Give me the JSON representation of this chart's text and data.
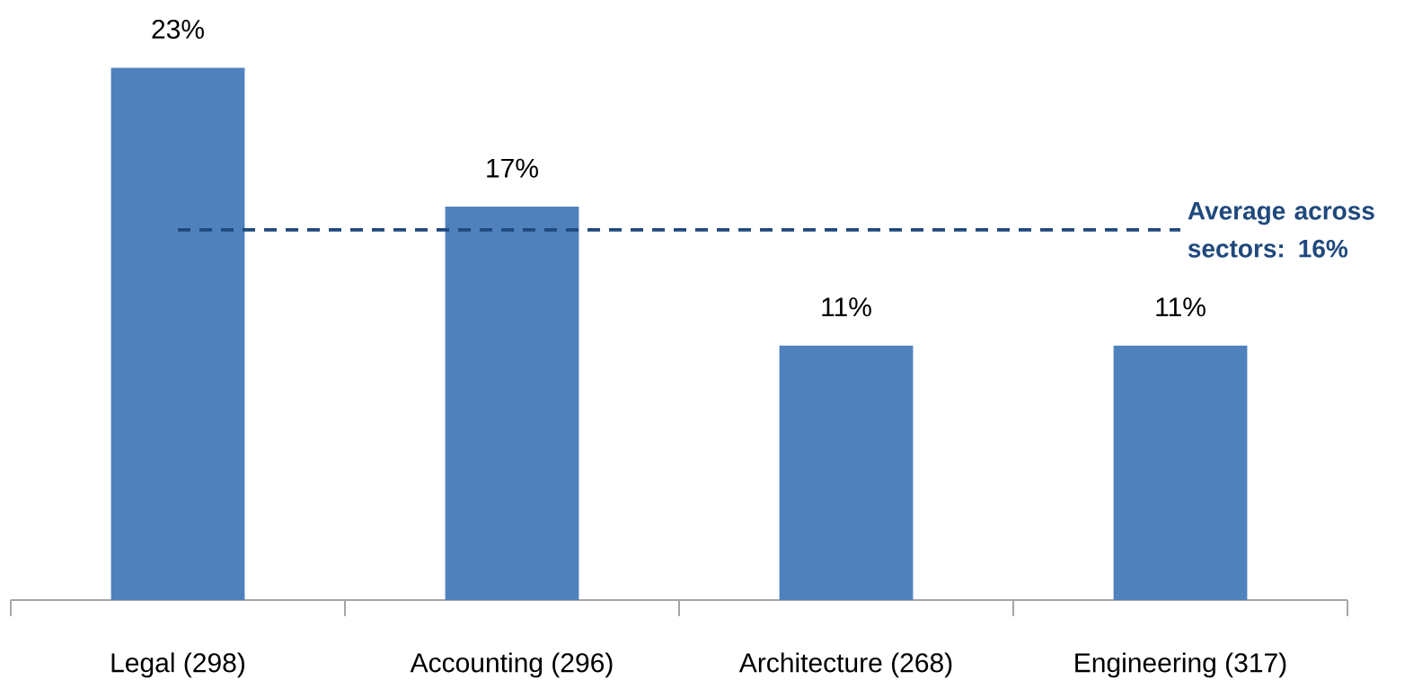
{
  "chart_data": {
    "type": "bar",
    "categories": [
      "Legal (298)",
      "Accounting (296)",
      "Architecture (268)",
      "Engineering (317)"
    ],
    "values": [
      23,
      17,
      11,
      11
    ],
    "value_labels": [
      "23%",
      "17%",
      "11%",
      "11%"
    ],
    "color": "#4f81bd",
    "ref_lines": [
      {
        "axis": "y",
        "value": 16,
        "label": "Average across sectors: 16%",
        "color": "#1f497d",
        "line_style": "dashed"
      }
    ],
    "grid": false
  }
}
